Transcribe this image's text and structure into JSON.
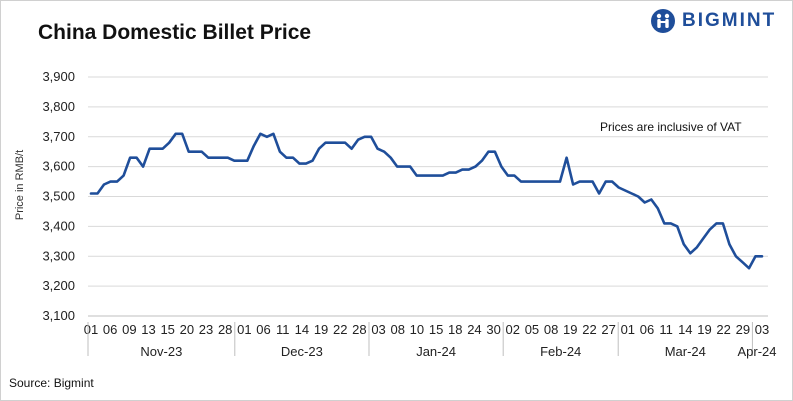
{
  "header": {
    "title": "China Domestic Billet Price",
    "logo_text": "BIGMINT"
  },
  "footer": {
    "source": "Source: Bigmint"
  },
  "colors": {
    "line": "#1f4e9a",
    "grid": "#d9d9d9",
    "brand": "#1f4e9a"
  },
  "chart_data": {
    "type": "line",
    "title": "China Domestic Billet Price",
    "ylabel": "Price in RMB/t",
    "xlabel": "",
    "ylim": [
      3100,
      3900
    ],
    "yticks": [
      "3,100",
      "3,200",
      "3,300",
      "3,400",
      "3,500",
      "3,600",
      "3,700",
      "3,800",
      "3,900"
    ],
    "grid": "horizontal",
    "annotation": "Prices are inclusive of VAT",
    "x_tick_labels": [
      "01",
      "06",
      "09",
      "13",
      "15",
      "20",
      "23",
      "28",
      "01",
      "06",
      "11",
      "14",
      "19",
      "22",
      "28",
      "03",
      "08",
      "10",
      "15",
      "18",
      "24",
      "30",
      "02",
      "05",
      "08",
      "19",
      "22",
      "27",
      "01",
      "06",
      "11",
      "14",
      "19",
      "22",
      "29",
      "03"
    ],
    "month_labels": [
      "Nov-23",
      "Dec-23",
      "Jan-24",
      "Feb-24",
      "Mar-24",
      "Apr-24"
    ],
    "series": [
      {
        "values": [
          3510,
          3510,
          3540,
          3550,
          3550,
          3570,
          3630,
          3630,
          3600,
          3660,
          3660,
          3660,
          3680,
          3710,
          3710,
          3650,
          3650,
          3650,
          3630,
          3630,
          3630,
          3630,
          3620,
          3620,
          3620,
          3670,
          3710,
          3700,
          3710,
          3650,
          3630,
          3630,
          3610,
          3610,
          3620,
          3660,
          3680,
          3680,
          3680,
          3680,
          3660,
          3690,
          3700,
          3700,
          3660,
          3650,
          3630,
          3600,
          3600,
          3600,
          3570,
          3570,
          3570,
          3570,
          3570,
          3580,
          3580,
          3590,
          3590,
          3600,
          3620,
          3650,
          3650,
          3600,
          3570,
          3570,
          3550,
          3550,
          3550,
          3550,
          3550,
          3550,
          3550,
          3630,
          3540,
          3550,
          3550,
          3550,
          3510,
          3550,
          3550,
          3530,
          3520,
          3510,
          3500,
          3480,
          3490,
          3460,
          3410,
          3410,
          3400,
          3340,
          3310,
          3330,
          3360,
          3390,
          3410,
          3410,
          3340,
          3300,
          3280,
          3260,
          3300,
          3300
        ]
      }
    ]
  }
}
